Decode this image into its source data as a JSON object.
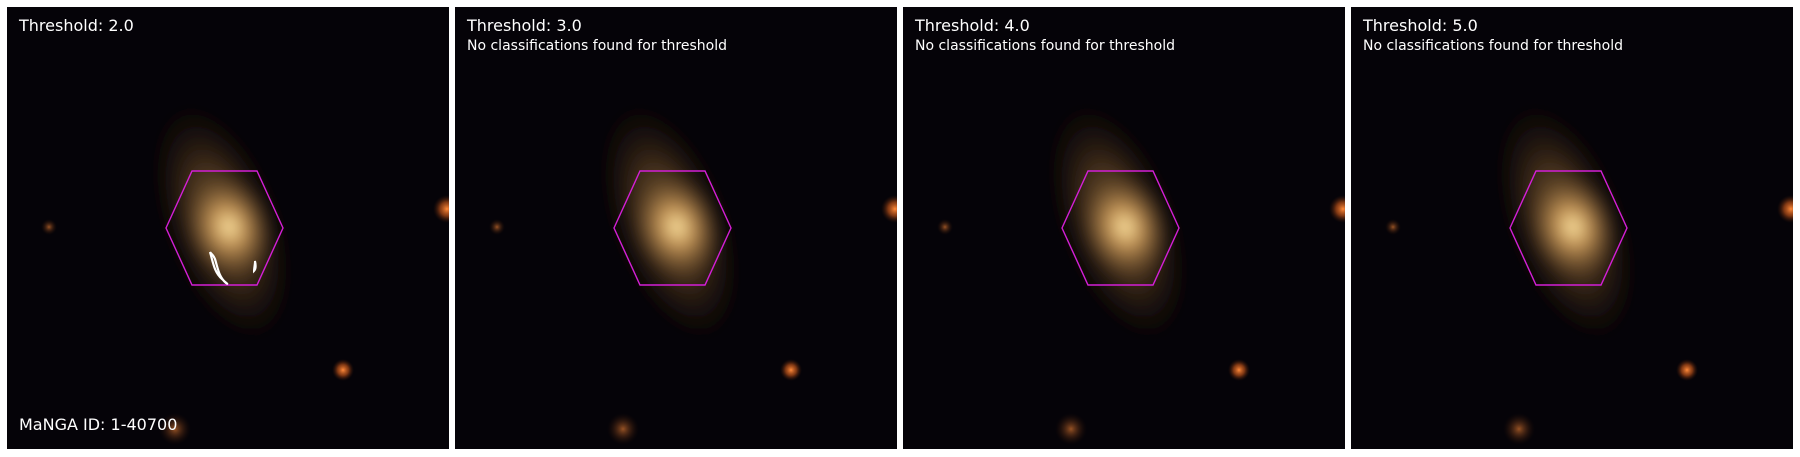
{
  "panels": [
    {
      "title": "Threshold: 2.0",
      "note": ""
    },
    {
      "title": "Threshold: 3.0",
      "note": "No classifications found for threshold"
    },
    {
      "title": "Threshold: 4.0",
      "note": "No classifications found for threshold"
    },
    {
      "title": "Threshold: 5.0",
      "note": "No classifications found for threshold"
    }
  ],
  "footer": {
    "manga_id": "MaNGA ID: 1-40700"
  },
  "colors": {
    "hexagon": "#d41fd6",
    "classification_contour": "#ffffff",
    "galaxy_core": "#f7d48c",
    "background": "#050308"
  },
  "icons": {
    "galaxy": "galaxy-image",
    "bundle": "hexagon-ifu-footprint"
  }
}
